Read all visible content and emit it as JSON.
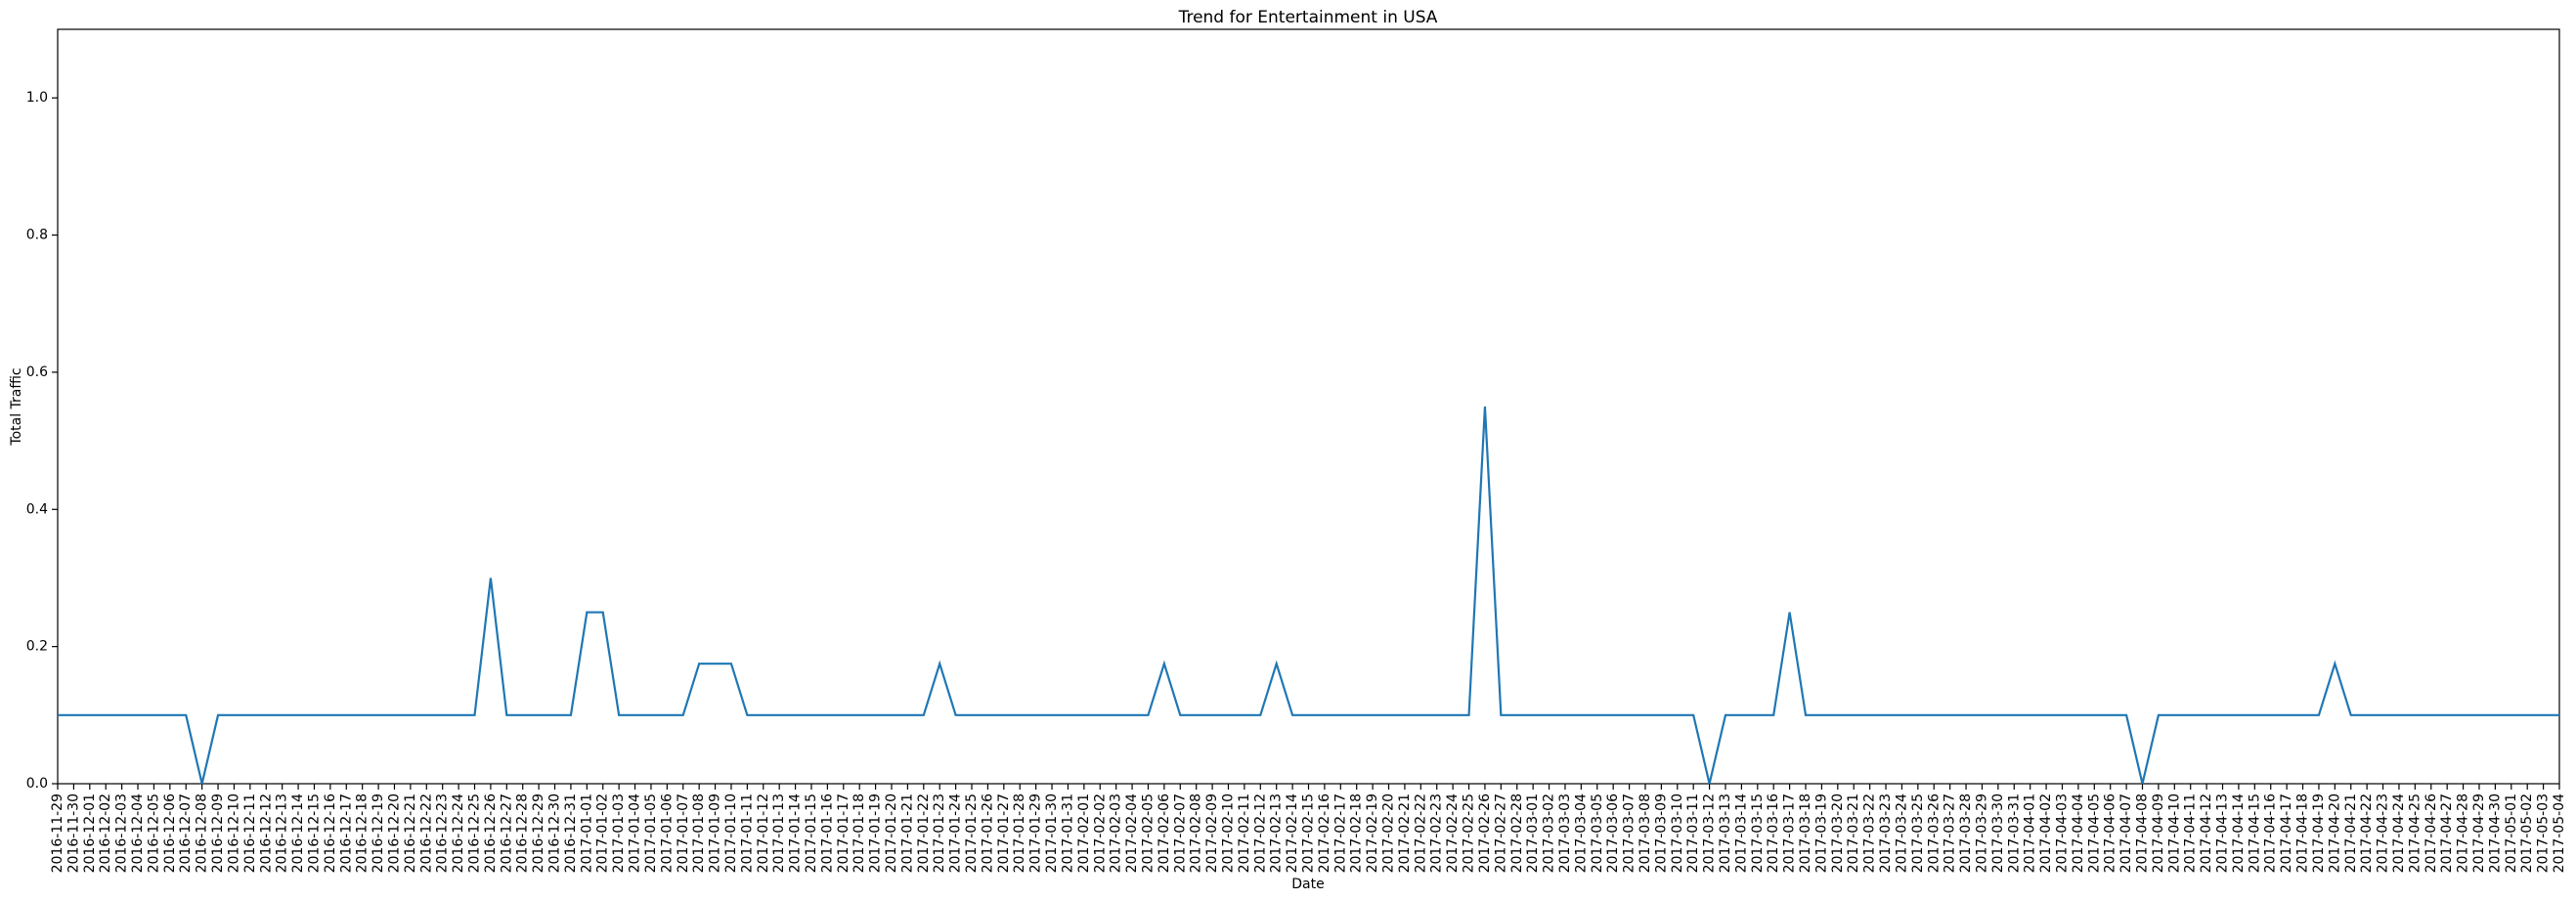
{
  "chart_data": {
    "type": "line",
    "title": "Trend for Entertainment in USA",
    "x_label": "Date",
    "y_label": "Total Traffic",
    "x": [
      "2016-11-29",
      "2016-11-30",
      "2016-12-01",
      "2016-12-02",
      "2016-12-03",
      "2016-12-04",
      "2016-12-05",
      "2016-12-06",
      "2016-12-07",
      "2016-12-08",
      "2016-12-09",
      "2016-12-10",
      "2016-12-11",
      "2016-12-12",
      "2016-12-13",
      "2016-12-14",
      "2016-12-15",
      "2016-12-16",
      "2016-12-17",
      "2016-12-18",
      "2016-12-19",
      "2016-12-20",
      "2016-12-21",
      "2016-12-22",
      "2016-12-23",
      "2016-12-24",
      "2016-12-25",
      "2016-12-26",
      "2016-12-27",
      "2016-12-28",
      "2016-12-29",
      "2016-12-30",
      "2016-12-31",
      "2017-01-01",
      "2017-01-02",
      "2017-01-03",
      "2017-01-04",
      "2017-01-05",
      "2017-01-06",
      "2017-01-07",
      "2017-01-08",
      "2017-01-09",
      "2017-01-10",
      "2017-01-11",
      "2017-01-12",
      "2017-01-13",
      "2017-01-14",
      "2017-01-15",
      "2017-01-16",
      "2017-01-17",
      "2017-01-18",
      "2017-01-19",
      "2017-01-20",
      "2017-01-21",
      "2017-01-22",
      "2017-01-23",
      "2017-01-24",
      "2017-01-25",
      "2017-01-26",
      "2017-01-27",
      "2017-01-28",
      "2017-01-29",
      "2017-01-30",
      "2017-01-31",
      "2017-02-01",
      "2017-02-02",
      "2017-02-03",
      "2017-02-04",
      "2017-02-05",
      "2017-02-06",
      "2017-02-07",
      "2017-02-08",
      "2017-02-09",
      "2017-02-10",
      "2017-02-11",
      "2017-02-12",
      "2017-02-13",
      "2017-02-14",
      "2017-02-15",
      "2017-02-16",
      "2017-02-17",
      "2017-02-18",
      "2017-02-19",
      "2017-02-20",
      "2017-02-21",
      "2017-02-22",
      "2017-02-23",
      "2017-02-24",
      "2017-02-25",
      "2017-02-26",
      "2017-02-27",
      "2017-02-28",
      "2017-03-01",
      "2017-03-02",
      "2017-03-03",
      "2017-03-04",
      "2017-03-05",
      "2017-03-06",
      "2017-03-07",
      "2017-03-08",
      "2017-03-09",
      "2017-03-10",
      "2017-03-11",
      "2017-03-12",
      "2017-03-13",
      "2017-03-14",
      "2017-03-15",
      "2017-03-16",
      "2017-03-17",
      "2017-03-18",
      "2017-03-19",
      "2017-03-20",
      "2017-03-21",
      "2017-03-22",
      "2017-03-23",
      "2017-03-24",
      "2017-03-25",
      "2017-03-26",
      "2017-03-27",
      "2017-03-28",
      "2017-03-29",
      "2017-03-30",
      "2017-03-31",
      "2017-04-01",
      "2017-04-02",
      "2017-04-03",
      "2017-04-04",
      "2017-04-05",
      "2017-04-06",
      "2017-04-07",
      "2017-04-08",
      "2017-04-09",
      "2017-04-10",
      "2017-04-11",
      "2017-04-12",
      "2017-04-13",
      "2017-04-14",
      "2017-04-15",
      "2017-04-16",
      "2017-04-17",
      "2017-04-18",
      "2017-04-19",
      "2017-04-20",
      "2017-04-21",
      "2017-04-22",
      "2017-04-23",
      "2017-04-24",
      "2017-04-25",
      "2017-04-26",
      "2017-04-27",
      "2017-04-28",
      "2017-04-29",
      "2017-04-30",
      "2017-05-01",
      "2017-05-02",
      "2017-05-03",
      "2017-05-04"
    ],
    "series": [
      {
        "color": "#1f77b4",
        "values": [
          0.1,
          0.1,
          0.1,
          0.1,
          0.1,
          0.1,
          0.1,
          0.1,
          0.1,
          0,
          0.1,
          0.1,
          0.1,
          0.1,
          0.1,
          0.1,
          0.1,
          0.1,
          0.1,
          0.1,
          0.1,
          0.1,
          0.1,
          0.1,
          0.1,
          0.1,
          0.1,
          0.3,
          0.1,
          0.1,
          0.1,
          0.1,
          0.1,
          0.25,
          0.25,
          0.1,
          0.1,
          0.1,
          0.1,
          0.1,
          0.175,
          0.175,
          0.175,
          0.1,
          0.1,
          0.1,
          0.1,
          0.1,
          0.1,
          0.1,
          0.1,
          0.1,
          0.1,
          0.1,
          0.1,
          0.175,
          0.1,
          0.1,
          0.1,
          0.1,
          0.1,
          0.1,
          0.1,
          0.1,
          0.1,
          0.1,
          0.1,
          0.1,
          0.1,
          0.175,
          0.1,
          0.1,
          0.1,
          0.1,
          0.1,
          0.1,
          0.175,
          0.1,
          0.1,
          0.1,
          0.1,
          0.1,
          0.1,
          0.1,
          0.1,
          0.1,
          0.1,
          0.1,
          0.1,
          0.55,
          0.1,
          0.1,
          0.1,
          0.1,
          0.1,
          0.1,
          0.1,
          0.1,
          0.1,
          0.1,
          0.1,
          0.1,
          0.1,
          0,
          0.1,
          0.1,
          0.1,
          0.1,
          0.25,
          0.1,
          0.1,
          0.1,
          0.1,
          0.1,
          0.1,
          0.1,
          0.1,
          0.1,
          0.1,
          0.1,
          0.1,
          0.1,
          0.1,
          0.1,
          0.1,
          0.1,
          0.1,
          0.1,
          0.1,
          0.1,
          0,
          0.1,
          0.1,
          0.1,
          0.1,
          0.1,
          0.1,
          0.1,
          0.1,
          0.1,
          0.1,
          0.1,
          0.175,
          0.1,
          0.1,
          0.1,
          0.1,
          0.1,
          0.1,
          0.1,
          0.1,
          0.1,
          0.1,
          0.1,
          0.1,
          0.1,
          0.1
        ]
      }
    ],
    "ylim": [
      0,
      1.1
    ],
    "yticks": [
      {
        "value": 0,
        "label": "0.0"
      },
      0.2,
      0.4,
      0.6,
      0.8,
      {
        "value": 1,
        "label": "1.0"
      }
    ]
  }
}
